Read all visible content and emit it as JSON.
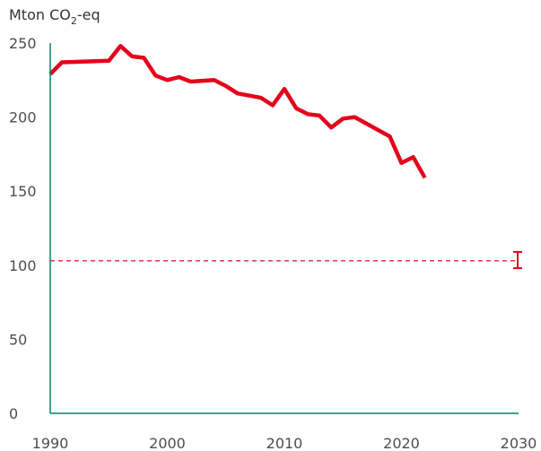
{
  "chart_data": {
    "type": "line",
    "ylabel": "Mton CO2-eq",
    "ylabel_parts": {
      "main": "Mton CO",
      "sub": "2",
      "suffix": "-eq"
    },
    "xlim": [
      1990,
      2030
    ],
    "ylim": [
      0,
      250
    ],
    "x_ticks": [
      1990,
      2000,
      2010,
      2020,
      2030
    ],
    "y_ticks": [
      0,
      50,
      100,
      150,
      200,
      250
    ],
    "grid": false,
    "series": [
      {
        "color": "#e3051b",
        "points": [
          [
            1990,
            229
          ],
          [
            1991,
            237
          ],
          [
            1995,
            238
          ],
          [
            1996,
            248
          ],
          [
            1997,
            241
          ],
          [
            1998,
            240
          ],
          [
            1999,
            228
          ],
          [
            2000,
            225
          ],
          [
            2001,
            227
          ],
          [
            2002,
            224
          ],
          [
            2004,
            225
          ],
          [
            2005,
            221
          ],
          [
            2006,
            216
          ],
          [
            2008,
            213
          ],
          [
            2009,
            208
          ],
          [
            2010,
            219
          ],
          [
            2011,
            206
          ],
          [
            2012,
            202
          ],
          [
            2013,
            201
          ],
          [
            2014,
            193
          ],
          [
            2015,
            199
          ],
          [
            2016,
            200
          ],
          [
            2019,
            187
          ],
          [
            2020,
            169
          ],
          [
            2021,
            173
          ],
          [
            2022,
            159
          ]
        ]
      }
    ],
    "target": {
      "value": 103,
      "style": "dashed",
      "color": "#e3051b",
      "range_year": 2030,
      "range_low": 98,
      "range_high": 109
    },
    "colors": {
      "axis": "#00836b",
      "line": "#e3051b",
      "text": "#4d4d4d"
    }
  }
}
